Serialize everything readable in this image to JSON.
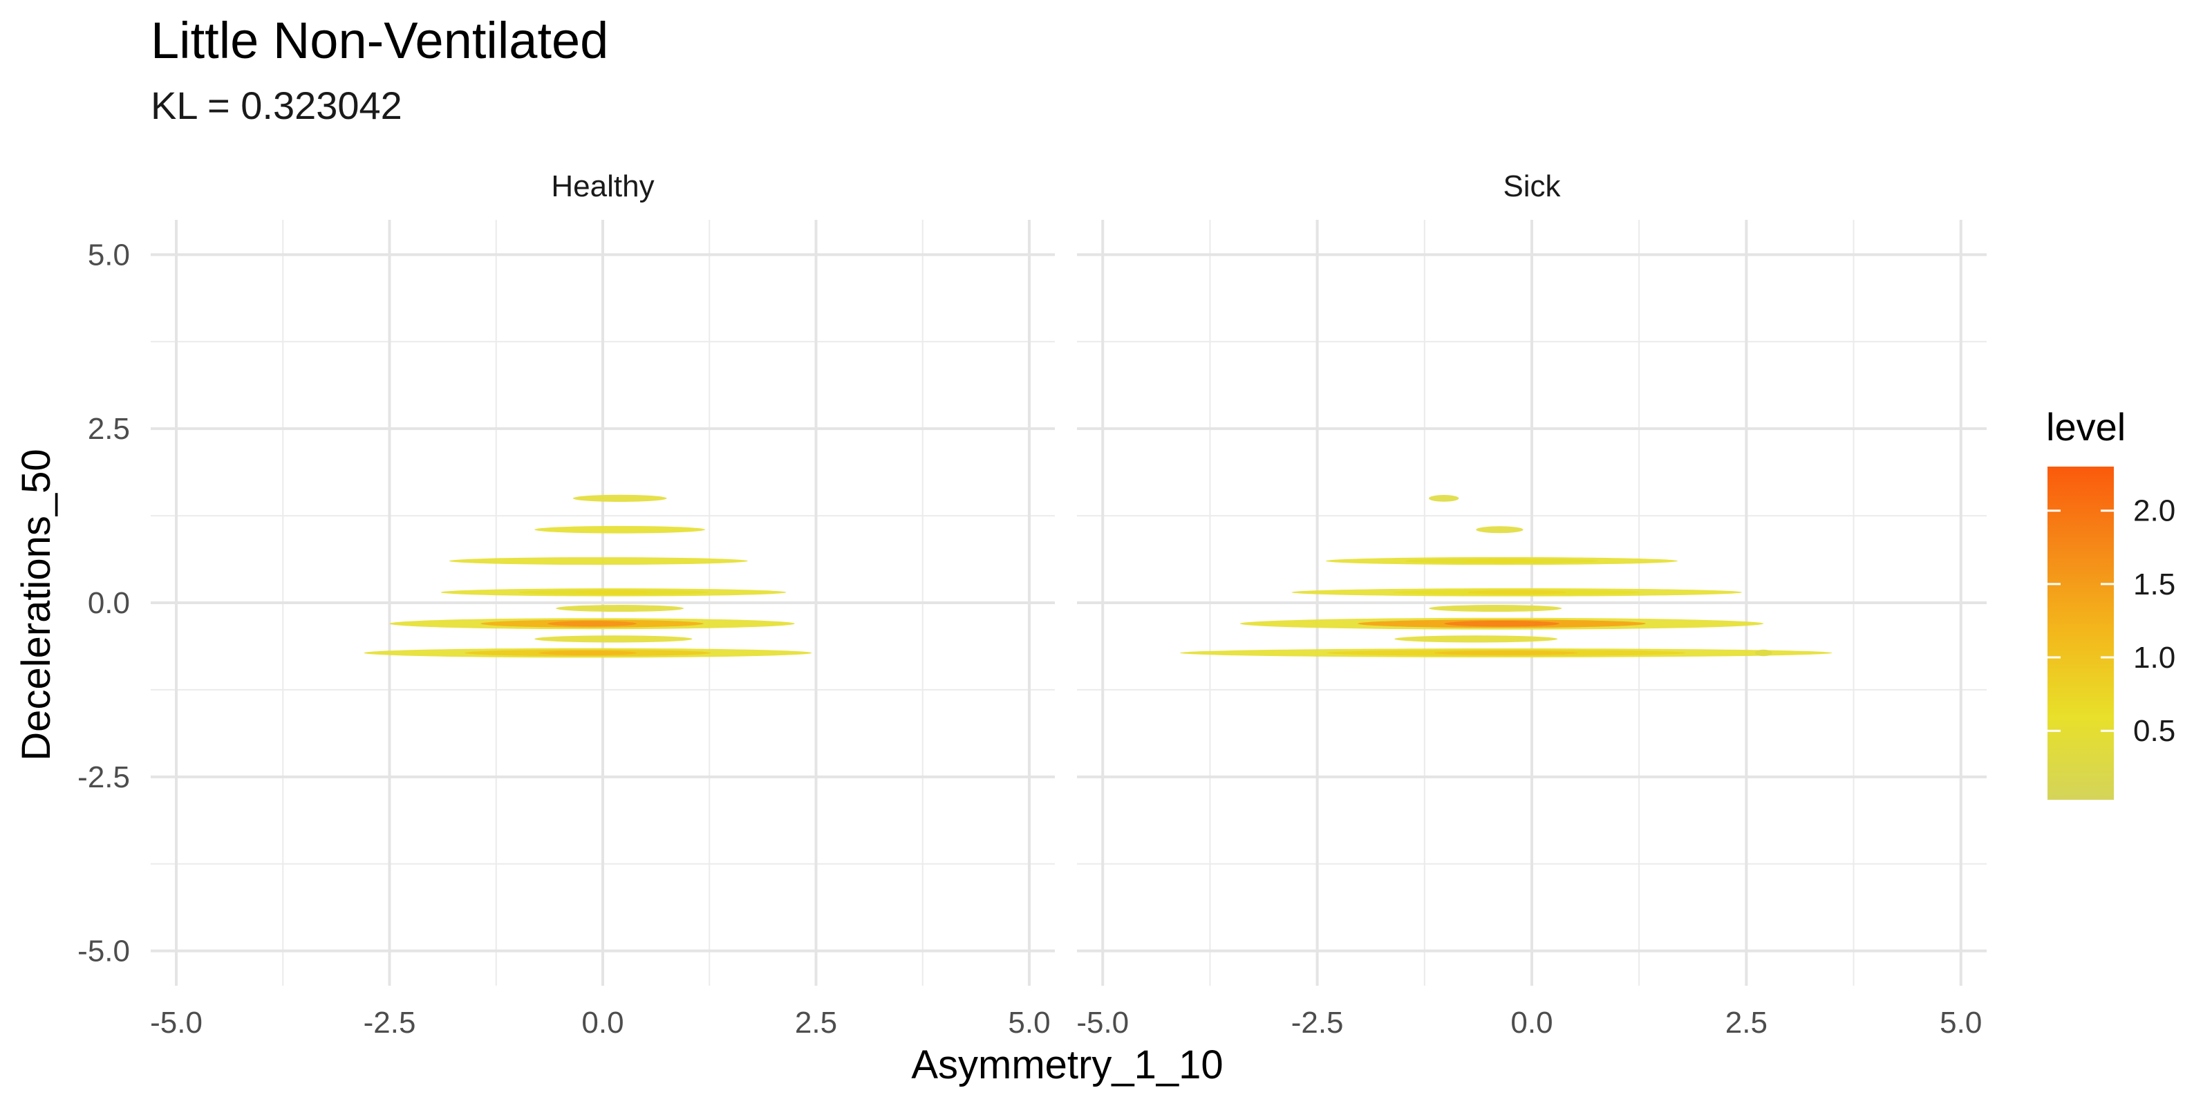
{
  "chart_data": {
    "type": "heatmap",
    "subtype": "2d-density-contour-filled",
    "title": "Little Non-Ventilated",
    "subtitle": "KL = 0.323042",
    "xlabel": "Asymmetry_1_10",
    "ylabel": "Decelerations_50",
    "xlim": [
      -5.3,
      5.3
    ],
    "ylim": [
      -5.5,
      5.5
    ],
    "x_ticks": [
      -5.0,
      -2.5,
      0.0,
      2.5,
      5.0
    ],
    "y_ticks": [
      -5.0,
      -2.5,
      0.0,
      2.5,
      5.0
    ],
    "x_tick_labels": [
      "-5.0",
      "-2.5",
      "0.0",
      "2.5",
      "5.0"
    ],
    "y_tick_labels": [
      "-5.0",
      "-2.5",
      "0.0",
      "2.5",
      "5.0"
    ],
    "grid": true,
    "legend": {
      "title": "level",
      "position": "right",
      "range": [
        0.03,
        2.3
      ],
      "ticks": [
        0.5,
        1.0,
        1.5,
        2.0
      ],
      "tick_labels": [
        "0.5",
        "1.0",
        "1.5",
        "2.0"
      ],
      "colors": [
        "#d4d45a",
        "#e8e02a",
        "#f3b81c",
        "#f58a18",
        "#fb5a0c"
      ]
    },
    "panels": [
      {
        "name": "Healthy",
        "bands": [
          {
            "y": 1.5,
            "x0": -0.35,
            "x1": 0.75,
            "level": 0.45
          },
          {
            "y": 1.05,
            "x0": -0.8,
            "x1": 1.2,
            "level": 0.55
          },
          {
            "y": 0.6,
            "x0": -1.8,
            "x1": 1.7,
            "level": 0.6
          },
          {
            "y": 0.15,
            "x0": -1.9,
            "x1": 2.15,
            "level": 0.7
          },
          {
            "y": -0.08,
            "x0": -0.55,
            "x1": 0.95,
            "level": 0.4
          },
          {
            "y": -0.3,
            "x0": -2.5,
            "x1": 2.25,
            "level": 1.6
          },
          {
            "y": -0.52,
            "x0": -0.8,
            "x1": 1.05,
            "level": 0.45
          },
          {
            "y": -0.72,
            "x0": -2.8,
            "x1": 2.45,
            "level": 1.15
          }
        ]
      },
      {
        "name": "Sick",
        "bands": [
          {
            "y": 1.5,
            "x0": -1.2,
            "x1": -0.85,
            "level": 0.35
          },
          {
            "y": 1.05,
            "x0": -0.65,
            "x1": -0.1,
            "level": 0.4
          },
          {
            "y": 0.6,
            "x0": -2.4,
            "x1": 1.7,
            "level": 0.65
          },
          {
            "y": 0.15,
            "x0": -2.8,
            "x1": 2.45,
            "level": 0.75
          },
          {
            "y": -0.08,
            "x0": -1.2,
            "x1": 0.35,
            "level": 0.4
          },
          {
            "y": -0.3,
            "x0": -3.4,
            "x1": 2.7,
            "level": 1.8
          },
          {
            "y": -0.52,
            "x0": -1.6,
            "x1": 0.3,
            "level": 0.45
          },
          {
            "y": -0.72,
            "x0": -4.1,
            "x1": 3.5,
            "level": 1.0
          },
          {
            "y": -0.72,
            "x0": 2.6,
            "x1": 2.8,
            "level": 0.3
          }
        ]
      }
    ]
  }
}
